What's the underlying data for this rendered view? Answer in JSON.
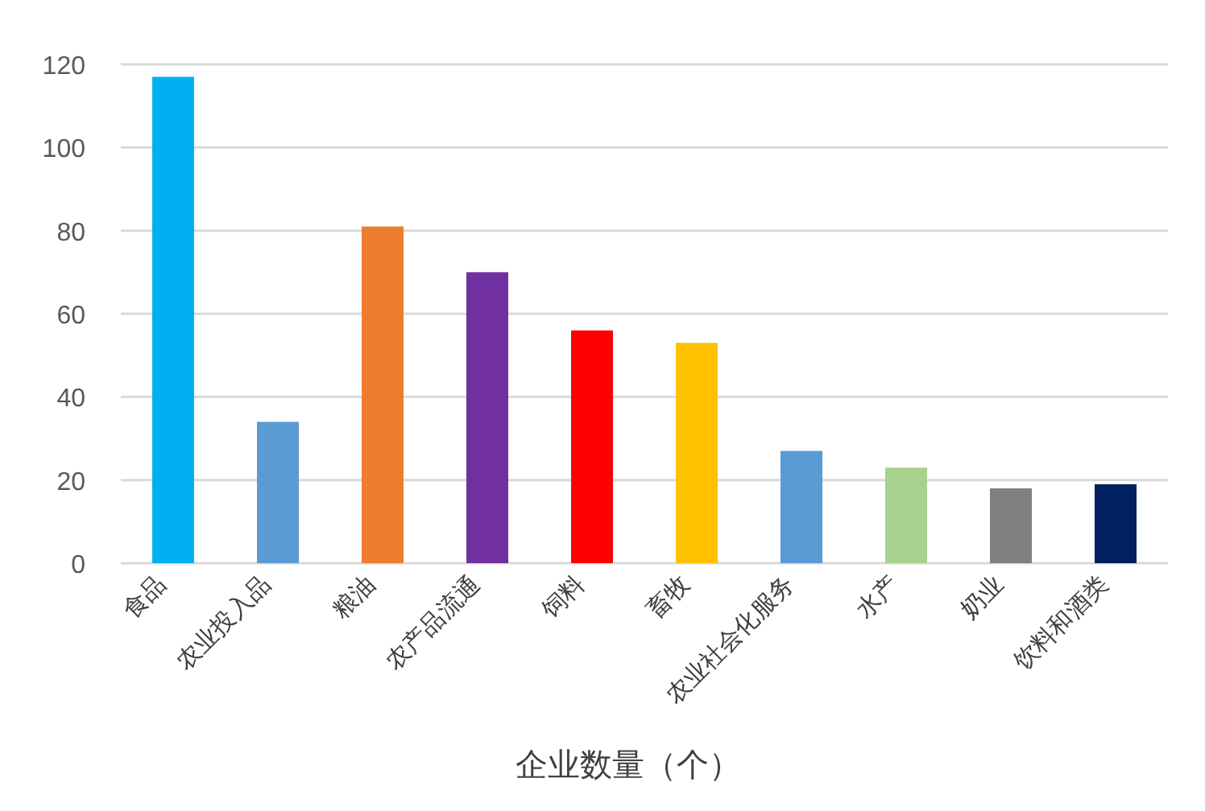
{
  "chart_data": {
    "type": "bar",
    "xlabel": "企业数量（个）",
    "categories": [
      "食品",
      "农业投入品",
      "粮油",
      "农产品流通",
      "饲料",
      "畜牧",
      "农业社会化服务",
      "水产",
      "奶业",
      "饮料和酒类"
    ],
    "values": [
      117,
      34,
      81,
      70,
      56,
      53,
      27,
      23,
      18,
      19
    ],
    "colors": [
      "#00b0f0",
      "#5b9bd5",
      "#ed7d31",
      "#7030a0",
      "#ff0000",
      "#ffc000",
      "#5b9bd5",
      "#a9d18e",
      "#7f7f7f",
      "#002060"
    ],
    "ylim": [
      0,
      120
    ],
    "yticks": [
      0,
      20,
      40,
      60,
      80,
      100,
      120
    ],
    "grid": "y"
  }
}
